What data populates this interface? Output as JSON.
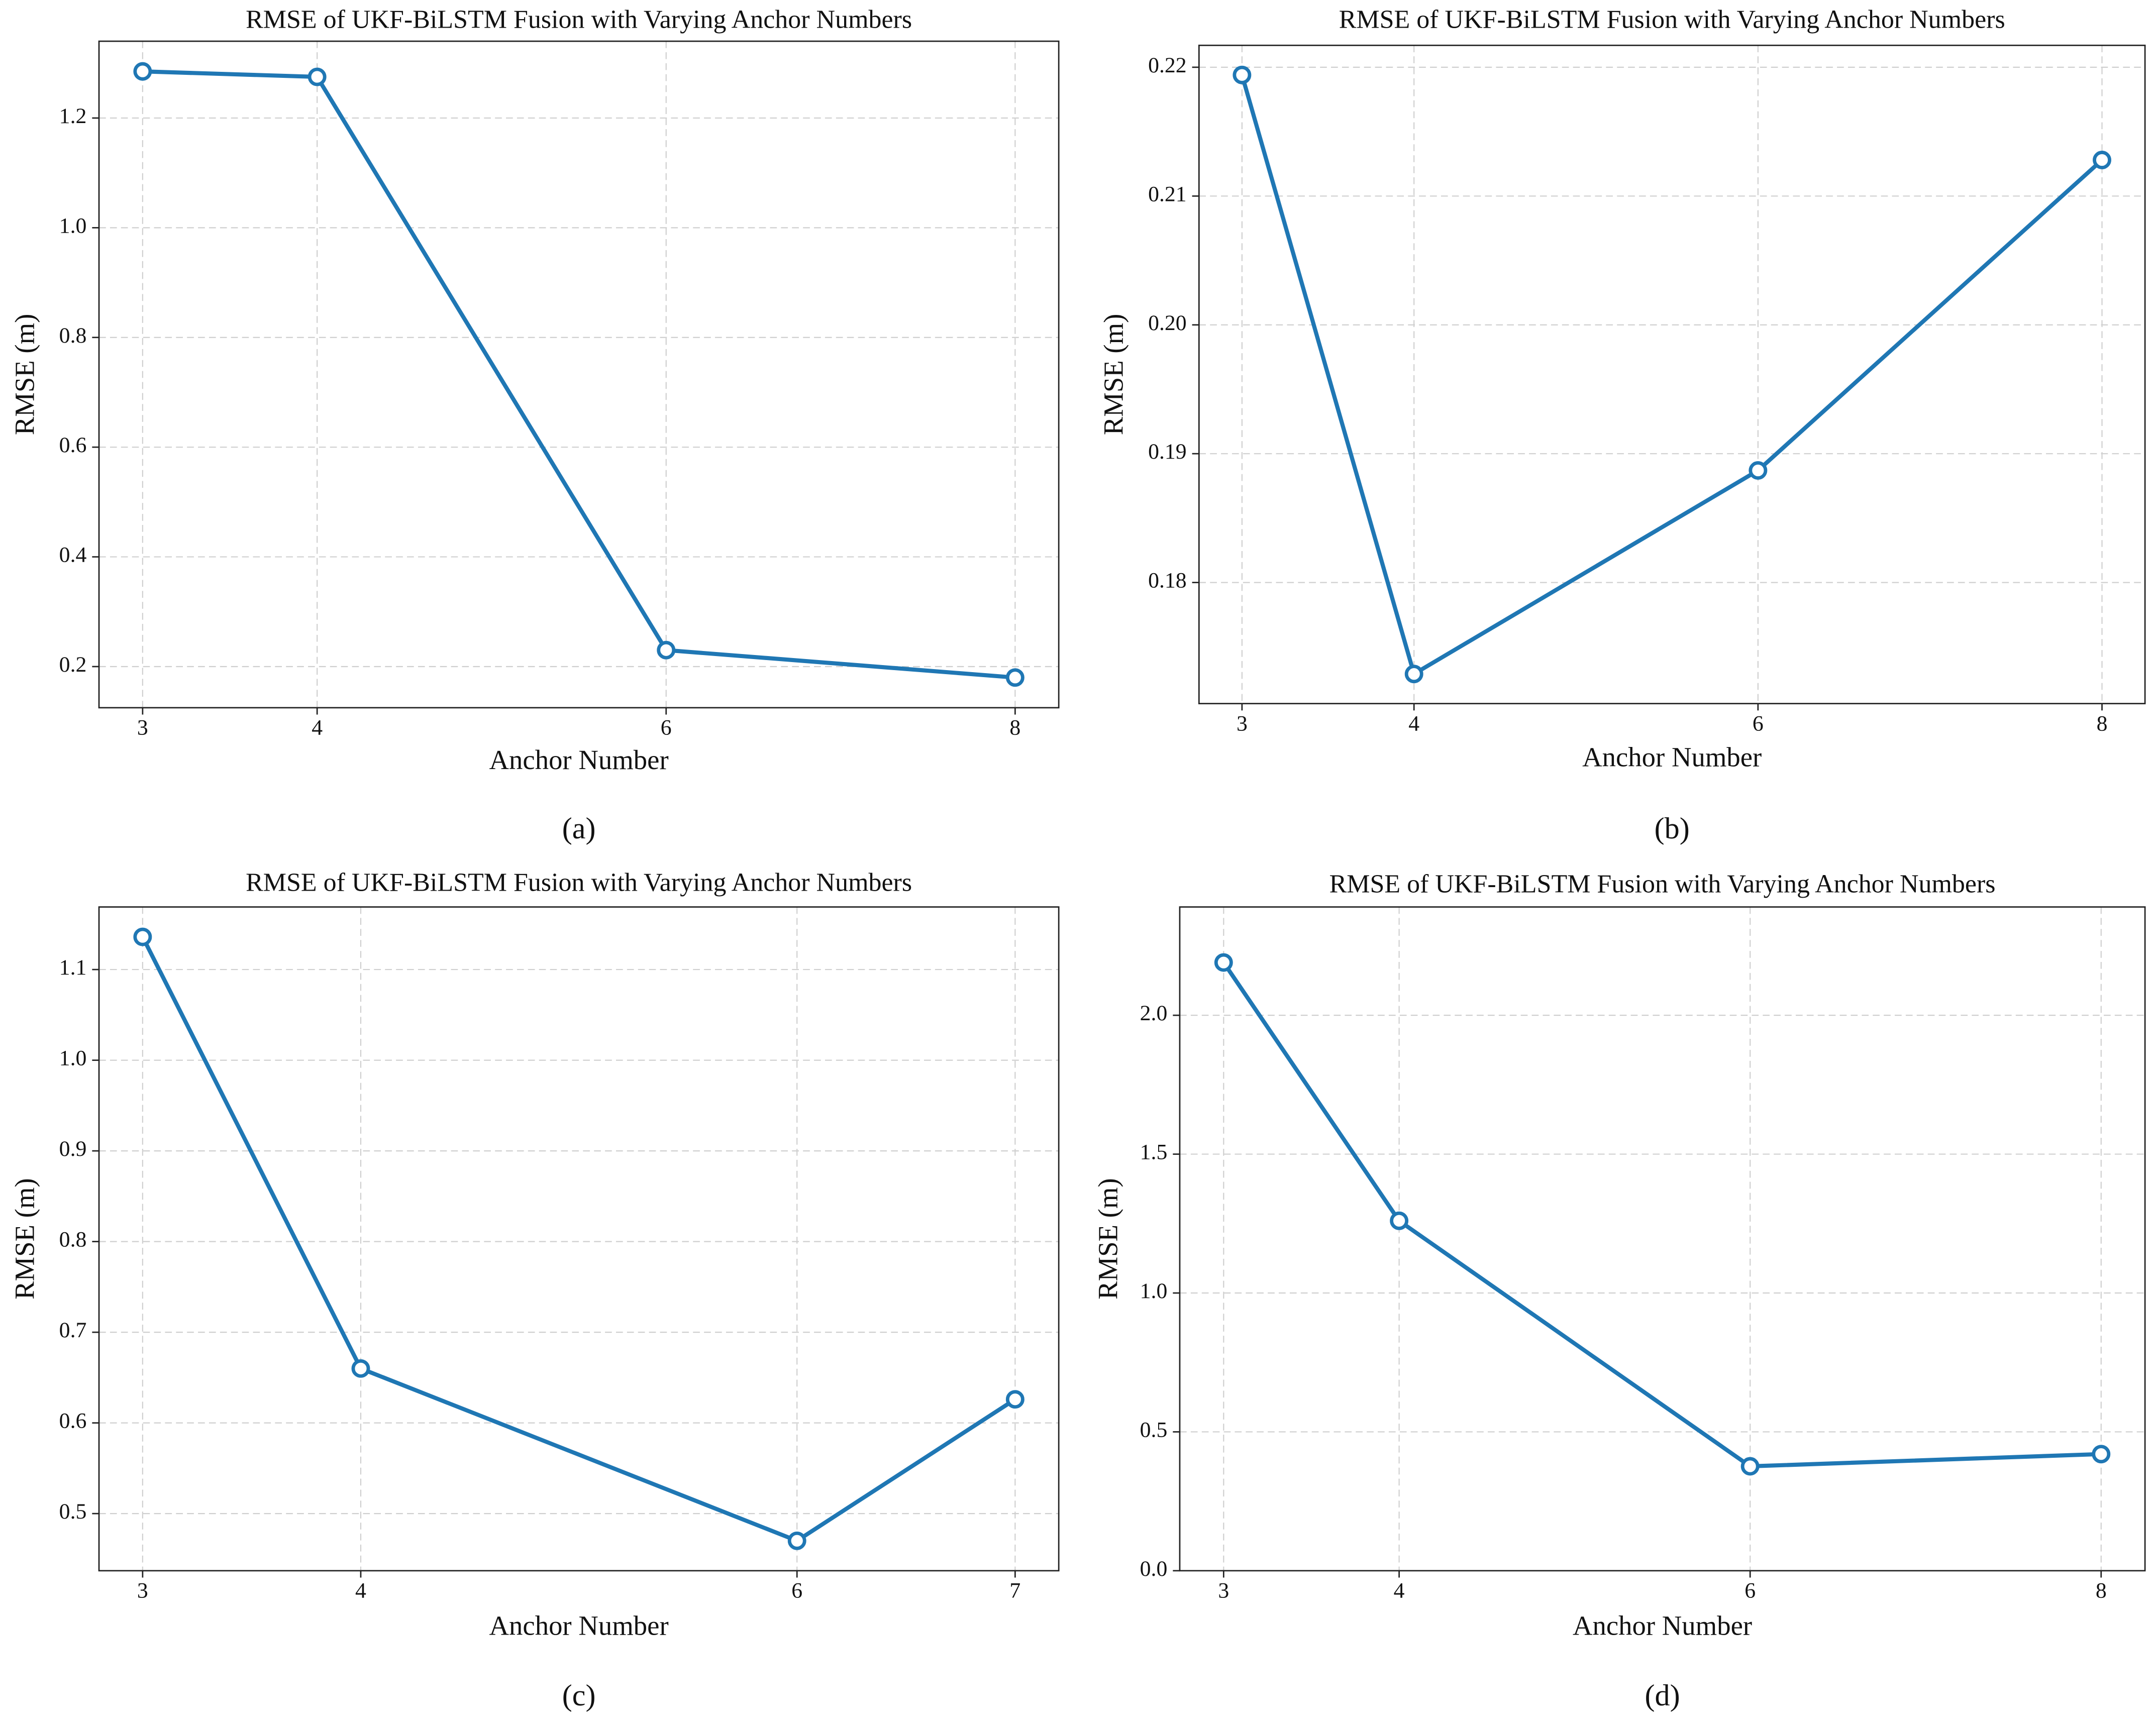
{
  "chart_data": [
    {
      "type": "line",
      "title": "RMSE of UKF-BiLSTM Fusion with Varying Anchor Numbers",
      "xlabel": "Anchor Number",
      "ylabel": "RMSE (m)",
      "panel_label": "(a)",
      "x": [
        3,
        4,
        6,
        8
      ],
      "series": [
        {
          "color": "#1f77b4",
          "values": [
            1.285,
            1.275,
            0.23,
            0.18
          ]
        }
      ],
      "xlim": [
        2.75,
        8.25
      ],
      "xticks": [
        3,
        4,
        6,
        8
      ],
      "ylim": [
        0.125,
        1.34
      ],
      "yticks": [
        0.2,
        0.4,
        0.6,
        0.8,
        {
          "value": 1,
          "label": "1.0"
        },
        1.2
      ],
      "grid": true
    },
    {
      "type": "line",
      "title": "RMSE of UKF-BiLSTM Fusion with Varying Anchor Numbers",
      "xlabel": "Anchor Number",
      "ylabel": "RMSE (m)",
      "panel_label": "(b)",
      "x": [
        3,
        4,
        6,
        8
      ],
      "series": [
        {
          "color": "#1f77b4",
          "values": [
            0.2194,
            0.1729,
            0.1887,
            0.2128
          ]
        }
      ],
      "xlim": [
        2.75,
        8.25
      ],
      "xticks": [
        3,
        4,
        6,
        8
      ],
      "ylim": [
        0.1706,
        0.2217
      ],
      "yticks": [
        0.18,
        0.19,
        {
          "value": 0.2,
          "label": "0.20"
        },
        0.21,
        0.22
      ],
      "grid": true
    },
    {
      "type": "line",
      "title": "RMSE of UKF-BiLSTM Fusion with Varying Anchor Numbers",
      "xlabel": "Anchor Number",
      "ylabel": "RMSE (m)",
      "panel_label": "(c)",
      "x": [
        3,
        4,
        6,
        7
      ],
      "series": [
        {
          "color": "#1f77b4",
          "values": [
            1.136,
            0.66,
            0.47,
            0.626
          ]
        }
      ],
      "xlim": [
        2.8,
        7.2
      ],
      "xticks": [
        3,
        4,
        6,
        7
      ],
      "ylim": [
        0.437,
        1.169
      ],
      "yticks": [
        0.5,
        0.6,
        0.7,
        0.8,
        0.9,
        {
          "value": 1,
          "label": "1.0"
        },
        1.1
      ],
      "grid": true
    },
    {
      "type": "line",
      "title": "RMSE of UKF-BiLSTM Fusion with Varying Anchor Numbers",
      "xlabel": "Anchor Number",
      "ylabel": "RMSE (m)",
      "panel_label": "(d)",
      "x": [
        3,
        4,
        6,
        8
      ],
      "series": [
        {
          "color": "#1f77b4",
          "values": [
            2.19,
            1.26,
            0.376,
            0.42
          ]
        }
      ],
      "xlim": [
        2.75,
        8.25
      ],
      "xticks": [
        3,
        4,
        6,
        8
      ],
      "ylim": [
        0,
        2.39
      ],
      "yticks": [
        {
          "value": 0,
          "label": "0.0"
        },
        0.5,
        {
          "value": 1,
          "label": "1.0"
        },
        1.5,
        {
          "value": 2,
          "label": "2.0"
        }
      ],
      "grid": true
    }
  ]
}
